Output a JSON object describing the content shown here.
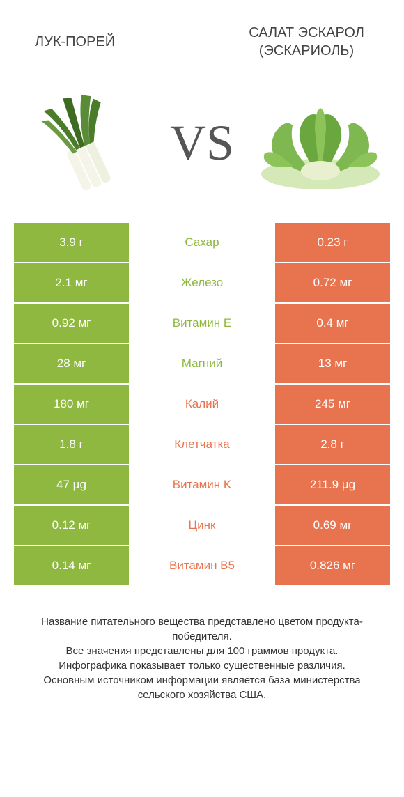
{
  "colors": {
    "left": "#8eb83f",
    "right": "#e8744f",
    "mid_bg": "#ffffff"
  },
  "header": {
    "left": "ЛУК-ПОРЕЙ",
    "right": "САЛАТ ЭСКАРОЛ (ЭСКАРИОЛЬ)"
  },
  "vs": "VS",
  "rows": [
    {
      "left": "3.9 г",
      "label": "Сахар",
      "right": "0.23 г",
      "winner": "left"
    },
    {
      "left": "2.1 мг",
      "label": "Железо",
      "right": "0.72 мг",
      "winner": "left"
    },
    {
      "left": "0.92 мг",
      "label": "Витамин E",
      "right": "0.4 мг",
      "winner": "left"
    },
    {
      "left": "28 мг",
      "label": "Магний",
      "right": "13 мг",
      "winner": "left"
    },
    {
      "left": "180 мг",
      "label": "Калий",
      "right": "245 мг",
      "winner": "right"
    },
    {
      "left": "1.8 г",
      "label": "Клетчатка",
      "right": "2.8 г",
      "winner": "right"
    },
    {
      "left": "47 µg",
      "label": "Витамин K",
      "right": "211.9 µg",
      "winner": "right"
    },
    {
      "left": "0.12 мг",
      "label": "Цинк",
      "right": "0.69 мг",
      "winner": "right"
    },
    {
      "left": "0.14 мг",
      "label": "Витамин B5",
      "right": "0.826 мг",
      "winner": "right"
    }
  ],
  "footnote": "Название питательного вещества представлено цветом продукта-победителя.\nВсе значения представлены для 100 граммов продукта.\nИнфографика показывает только существенные различия.\nОсновным источником информации является база министерства сельского хозяйства США."
}
